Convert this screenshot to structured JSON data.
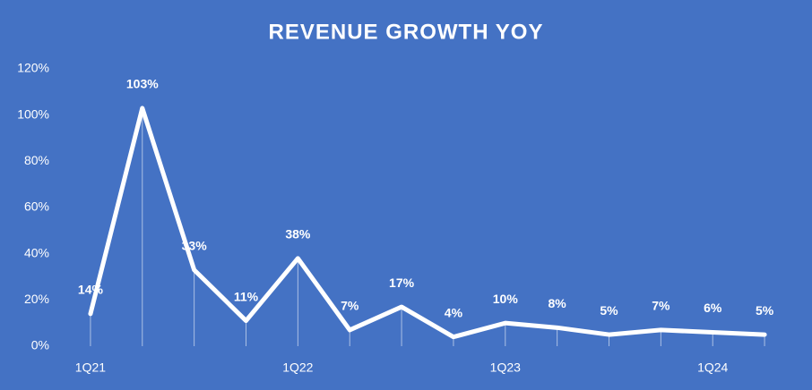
{
  "chart_data": {
    "type": "line",
    "title": "REVENUE GROWTH YOY",
    "categories": [
      "1Q21",
      null,
      null,
      null,
      "1Q22",
      null,
      null,
      null,
      "1Q23",
      null,
      null,
      null,
      "1Q24",
      null
    ],
    "values": [
      14,
      103,
      33,
      11,
      38,
      7,
      17,
      4,
      10,
      8,
      5,
      7,
      6,
      5
    ],
    "value_labels": [
      "14%",
      "103%",
      "33%",
      "11%",
      "38%",
      "7%",
      "17%",
      "4%",
      "10%",
      "8%",
      "5%",
      "7%",
      "6%",
      "5%"
    ],
    "color": "#ffffff",
    "ylim": [
      0,
      120
    ],
    "yticks": [
      {
        "value": 0,
        "label": "0%"
      },
      {
        "value": 20,
        "label": "20%"
      },
      {
        "value": 40,
        "label": "40%"
      },
      {
        "value": 60,
        "label": "60%"
      },
      {
        "value": 80,
        "label": "80%"
      },
      {
        "value": 100,
        "label": "100%"
      },
      {
        "value": 120,
        "label": "120%"
      }
    ],
    "grid": false
  }
}
